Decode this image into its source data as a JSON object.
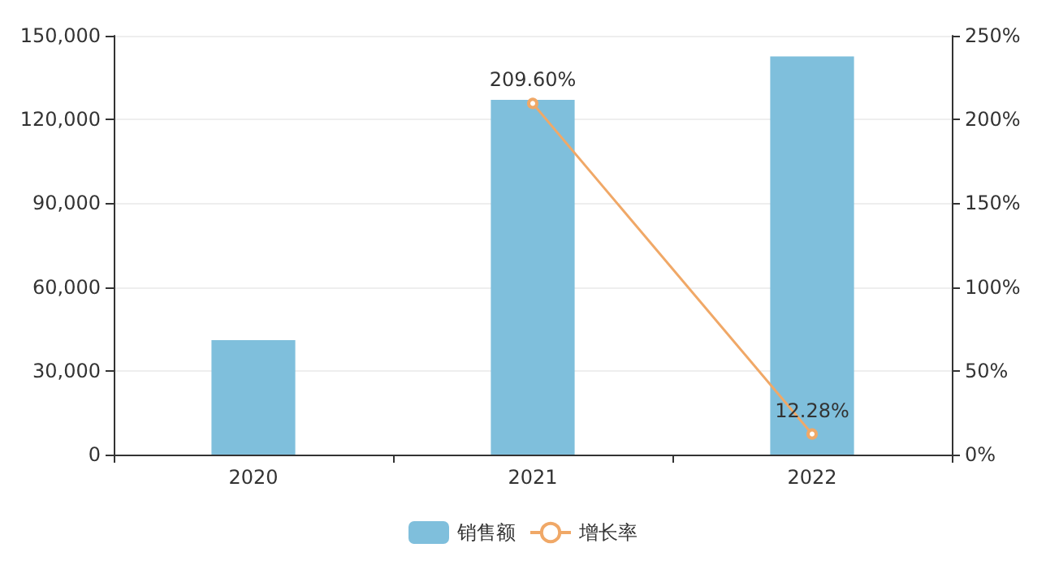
{
  "chart_data": {
    "type": "bar",
    "categories": [
      "2020",
      "2021",
      "2022"
    ],
    "series": [
      {
        "name": "销售额",
        "color": "#7fbfdc",
        "values": [
          41000,
          127000,
          142600
        ]
      },
      {
        "name": "增长率",
        "type": "line",
        "axis": "y2",
        "color": "#f0a867",
        "values": [
          null,
          209.6,
          12.28
        ],
        "value_labels": [
          null,
          "209.60%",
          "12.28%"
        ]
      }
    ],
    "ylim": [
      0,
      150000
    ],
    "yticks": [
      {
        "value": 0,
        "label": "0"
      },
      {
        "value": 30000,
        "label": "30,000"
      },
      {
        "value": 60000,
        "label": "60,000"
      },
      {
        "value": 90000,
        "label": "90,000"
      },
      {
        "value": 120000,
        "label": "120,000"
      },
      {
        "value": 150000,
        "label": "150,000"
      }
    ],
    "y2lim": [
      0,
      250
    ],
    "y2ticks": [
      {
        "value": 0,
        "label": "0%"
      },
      {
        "value": 50,
        "label": "50%"
      },
      {
        "value": 100,
        "label": "100%"
      },
      {
        "value": 150,
        "label": "150%"
      },
      {
        "value": 200,
        "label": "200%"
      },
      {
        "value": 250,
        "label": "250%"
      }
    ],
    "grid": "y",
    "legend": "bottom",
    "marker": "circle",
    "line_style": "solid"
  }
}
